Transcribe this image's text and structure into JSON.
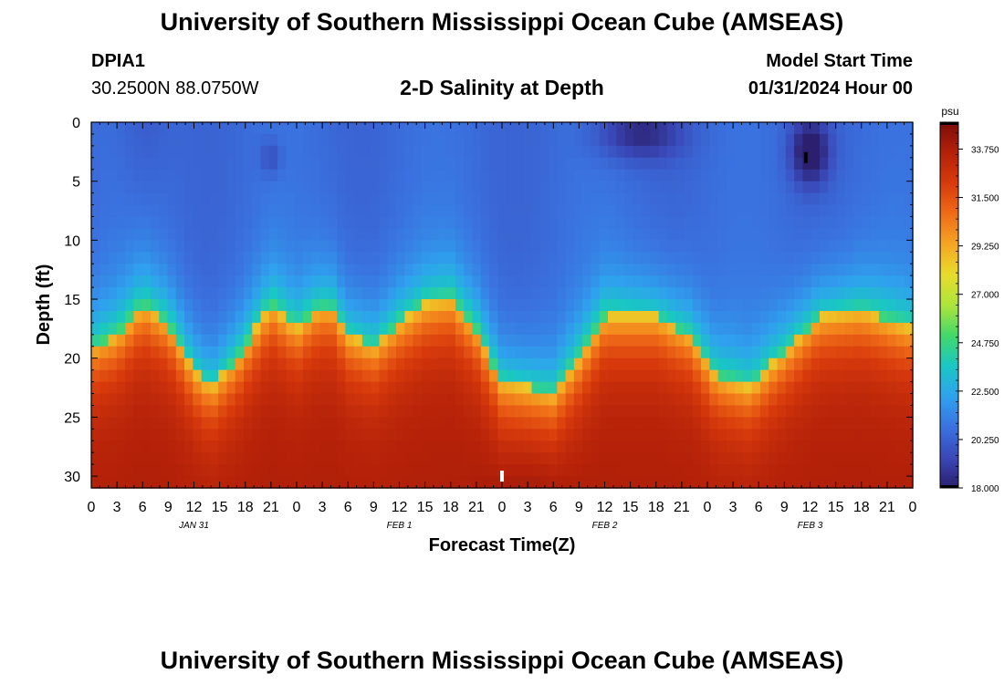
{
  "header": {
    "title": "University of Southern Mississippi Ocean Cube (AMSEAS)",
    "station_id": "DPIA1",
    "coordinates": "30.2500N  88.0750W",
    "chart_title": "2-D Salinity at Depth",
    "model_start_label": "Model Start Time",
    "model_start_value": "01/31/2024 Hour 00"
  },
  "footer": {
    "title": "University of Southern Mississippi Ocean Cube (AMSEAS)"
  },
  "chart_data": {
    "type": "heatmap",
    "title": "2-D Salinity at Depth",
    "xlabel": "Forecast Time(Z)",
    "ylabel": "Depth (ft)",
    "x_tick_labels": [
      "0",
      "3",
      "6",
      "9",
      "12",
      "15",
      "18",
      "21",
      "0",
      "3",
      "6",
      "9",
      "12",
      "15",
      "18",
      "21",
      "0",
      "3",
      "6",
      "9",
      "12",
      "15",
      "18",
      "21",
      "0",
      "3",
      "6",
      "9",
      "12",
      "15",
      "18",
      "21",
      "0"
    ],
    "date_labels": [
      {
        "label": "JAN 31",
        "hour": 12
      },
      {
        "label": "FEB 1",
        "hour": 36
      },
      {
        "label": "FEB 2",
        "hour": 60
      },
      {
        "label": "FEB 3",
        "hour": 84
      }
    ],
    "xlim_hours": [
      0,
      96
    ],
    "ylim_ft": [
      0,
      31
    ],
    "y_ticks": [
      0,
      5,
      10,
      15,
      20,
      25,
      30
    ],
    "colorbar": {
      "unit": "psu",
      "min": 18.0,
      "max": 35.0,
      "tick_labels": [
        "33.750",
        "31.500",
        "29.250",
        "27.000",
        "24.750",
        "22.500",
        "20.250",
        "18.000"
      ],
      "tick_values": [
        33.75,
        31.5,
        29.25,
        27.0,
        24.75,
        22.5,
        20.25,
        18.0
      ],
      "colors": [
        "#2b1f6e",
        "#3a48b8",
        "#3a72e0",
        "#2fa2ee",
        "#19c7c4",
        "#43d86a",
        "#aee53a",
        "#e8dc2c",
        "#f5a523",
        "#ef6b17",
        "#d83a0c",
        "#b42109",
        "#7a0c0a"
      ]
    },
    "interface_depth_ft": [
      {
        "hour": 0,
        "depth": 19
      },
      {
        "hour": 3,
        "depth": 18
      },
      {
        "hour": 6,
        "depth": 15.5
      },
      {
        "hour": 9,
        "depth": 17
      },
      {
        "hour": 12,
        "depth": 21
      },
      {
        "hour": 14,
        "depth": 22.5
      },
      {
        "hour": 17,
        "depth": 20
      },
      {
        "hour": 21,
        "depth": 15.5
      },
      {
        "hour": 24,
        "depth": 17.5
      },
      {
        "hour": 26,
        "depth": 16
      },
      {
        "hour": 28,
        "depth": 15.5
      },
      {
        "hour": 30,
        "depth": 18
      },
      {
        "hour": 33,
        "depth": 19
      },
      {
        "hour": 36,
        "depth": 17
      },
      {
        "hour": 39,
        "depth": 15.5
      },
      {
        "hour": 42,
        "depth": 15
      },
      {
        "hour": 45,
        "depth": 17.5
      },
      {
        "hour": 48,
        "depth": 22
      },
      {
        "hour": 54,
        "depth": 23
      },
      {
        "hour": 57,
        "depth": 20
      },
      {
        "hour": 60,
        "depth": 16.5
      },
      {
        "hour": 66,
        "depth": 16.5
      },
      {
        "hour": 70,
        "depth": 18
      },
      {
        "hour": 73,
        "depth": 21.5
      },
      {
        "hour": 77,
        "depth": 22.5
      },
      {
        "hour": 81,
        "depth": 19.5
      },
      {
        "hour": 85,
        "depth": 16.5
      },
      {
        "hour": 90,
        "depth": 16
      },
      {
        "hour": 96,
        "depth": 17.5
      }
    ],
    "dark_patches": [
      {
        "hour": 64,
        "depth": 1.0,
        "hour_width": 5,
        "depth_width": 2.2,
        "strength": 0.9
      },
      {
        "hour": 84,
        "depth": 2.5,
        "hour_width": 2.2,
        "depth_width": 2.8,
        "strength": 1.3
      },
      {
        "hour": 21,
        "depth": 3.0,
        "hour_width": 1.2,
        "depth_width": 1.5,
        "strength": 0.5
      }
    ],
    "markers": [
      {
        "hour": 48,
        "depth": 30,
        "color": "#ffffff"
      },
      {
        "hour": 83.5,
        "depth": 3,
        "color": "#000000"
      }
    ]
  }
}
